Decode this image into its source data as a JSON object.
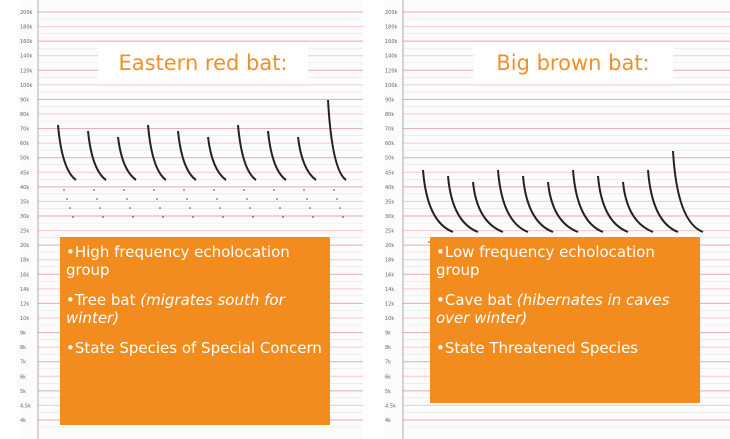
{
  "axis_labels": [
    "200k",
    "180k",
    "160k",
    "140k",
    "120k",
    "100k",
    "90k",
    "80k",
    "70k",
    "60k",
    "50k",
    "45k",
    "40k",
    "35k",
    "30k",
    "25k",
    "20k",
    "18k",
    "16k",
    "14k",
    "12k",
    "10k",
    "9k",
    "8k",
    "7k",
    "6k",
    "5k",
    "4.5k",
    "4k"
  ],
  "panels": [
    {
      "title": "Eastern red bat:",
      "bullets": [
        "•High frequency echolocation group",
        {
          "text": "•Tree bat",
          "note": "(migrates south for winter)"
        },
        "•State Species of Special Concern"
      ]
    },
    {
      "title": "Big brown bat:",
      "bullets": [
        "•Low frequency echolocation group",
        {
          "text": "•Cave bat",
          "note": "(hibernates in caves over winter)"
        },
        "•State Threatened Species"
      ]
    }
  ]
}
